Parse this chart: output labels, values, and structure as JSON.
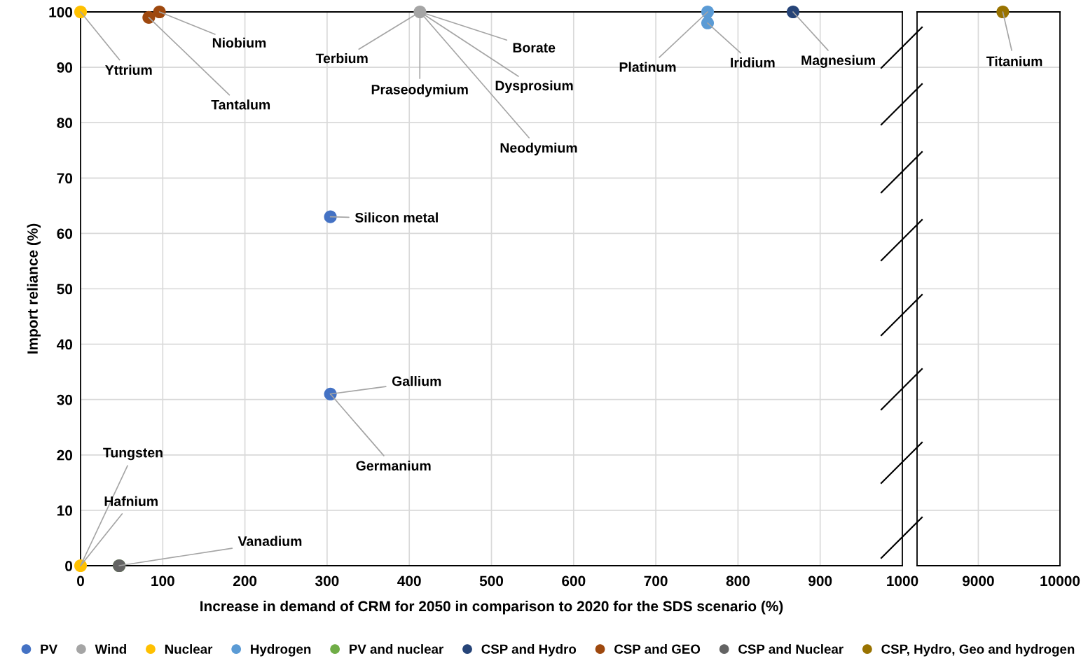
{
  "chart_data": [
    {
      "type": "scatter",
      "xlabel": "Increase in demand of CRM for 2050 in comparison to 2020 for the SDS scenario (%)",
      "ylabel": "Import reliance (%)",
      "xlim": [
        0,
        1000
      ],
      "xticks": [
        0,
        100,
        200,
        300,
        400,
        500,
        600,
        700,
        800,
        900,
        1000
      ],
      "ylim": [
        0,
        100
      ],
      "yticks": [
        0,
        10,
        20,
        30,
        40,
        50,
        60,
        70,
        80,
        90,
        100
      ],
      "grid": true,
      "legend": "bottom",
      "marker": "circle",
      "series": [
        {
          "name": "PV",
          "color": "#4472c4",
          "x": [
            304,
            304
          ],
          "values": [
            63,
            31
          ]
        },
        {
          "name": "Wind",
          "color": "#a5a5a5",
          "x": [
            413
          ],
          "values": [
            100
          ]
        },
        {
          "name": "Nuclear",
          "color": "#ffc000",
          "x": [
            0,
            0
          ],
          "values": [
            100,
            0
          ]
        },
        {
          "name": "Hydrogen",
          "color": "#5b9bd5",
          "x": [
            763,
            763
          ],
          "values": [
            100,
            98
          ]
        },
        {
          "name": "PV and nuclear",
          "color": "#70ad47",
          "x": [
            47
          ],
          "values": [
            0
          ]
        },
        {
          "name": "CSP and Hydro",
          "color": "#264478",
          "x": [
            867
          ],
          "values": [
            100
          ]
        },
        {
          "name": "CSP and GEO",
          "color": "#9e480e",
          "x": [
            83,
            96
          ],
          "values": [
            99,
            100
          ]
        },
        {
          "name": "CSP and Nuclear",
          "color": "#636363",
          "x": [
            47
          ],
          "values": [
            0
          ]
        }
      ],
      "annotations": [
        {
          "text": "Yttrium",
          "x": 0,
          "y": 100
        },
        {
          "text": "Niobium",
          "x": 96,
          "y": 100
        },
        {
          "text": "Tantalum",
          "x": 83,
          "y": 99
        },
        {
          "text": "Terbium",
          "x": 413,
          "y": 100
        },
        {
          "text": "Praseodymium",
          "x": 413,
          "y": 100
        },
        {
          "text": "Borate",
          "x": 413,
          "y": 100
        },
        {
          "text": "Dysprosium",
          "x": 413,
          "y": 100
        },
        {
          "text": "Neodymium",
          "x": 413,
          "y": 100
        },
        {
          "text": "Platinum",
          "x": 763,
          "y": 100
        },
        {
          "text": "Iridium",
          "x": 763,
          "y": 98
        },
        {
          "text": "Magnesium",
          "x": 867,
          "y": 100
        },
        {
          "text": "Silicon metal",
          "x": 304,
          "y": 63
        },
        {
          "text": "Gallium",
          "x": 304,
          "y": 31
        },
        {
          "text": "Germanium",
          "x": 304,
          "y": 31
        },
        {
          "text": "Tungsten",
          "x": 0,
          "y": 0
        },
        {
          "text": "Hafnium",
          "x": 0,
          "y": 0
        },
        {
          "text": "Vanadium",
          "x": 47,
          "y": 0
        }
      ]
    },
    {
      "type": "scatter",
      "xlim": [
        8250,
        10000
      ],
      "xticks": [
        9000,
        10000
      ],
      "ylim": [
        0,
        100
      ],
      "yticks": [
        0,
        10,
        20,
        30,
        40,
        50,
        60,
        70,
        80,
        90,
        100
      ],
      "tick_labels": "x",
      "grid": true,
      "legend": "bottom",
      "marker": "circle",
      "series": [
        {
          "name": "CSP, Hydro, Geo and hydrogen",
          "color": "#997300",
          "x": [
            9300
          ],
          "values": [
            100
          ]
        }
      ],
      "annotations": [
        {
          "text": "Titanium",
          "x": 9300,
          "y": 100
        }
      ]
    }
  ]
}
